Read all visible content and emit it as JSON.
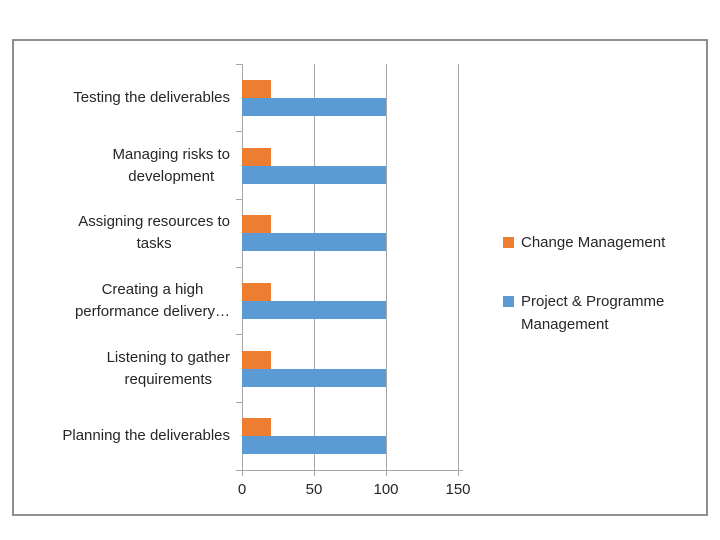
{
  "chart_data": {
    "type": "bar",
    "orientation": "horizontal",
    "title": "",
    "categories": [
      "Testing the deliverables",
      "Managing risks to\ndevelopment",
      "Assigning resources to\ntasks",
      "Creating a high\nperformance delivery…",
      "Listening to gather\nrequirements",
      "Planning the deliverables"
    ],
    "series": [
      {
        "name": "Change Management",
        "color": "#ED7D31",
        "values": [
          20,
          20,
          20,
          20,
          20,
          20
        ]
      },
      {
        "name": "Project & Programme Management",
        "color": "#5B9BD5",
        "values": [
          100,
          100,
          100,
          100,
          100,
          100
        ]
      }
    ],
    "x_ticks": [
      "0",
      "50",
      "100",
      "150"
    ],
    "xlim": [
      0,
      150
    ],
    "grid": true,
    "legend_position": "right"
  },
  "colors": {
    "orange_series": "#ED7D31",
    "blue_series": "#5B9BD5",
    "gridline": "#A6A6A6",
    "axis": "#A6A6A6",
    "text": "#262626",
    "panel_border": "#8E8E8E",
    "background": "#FFFFFF"
  }
}
